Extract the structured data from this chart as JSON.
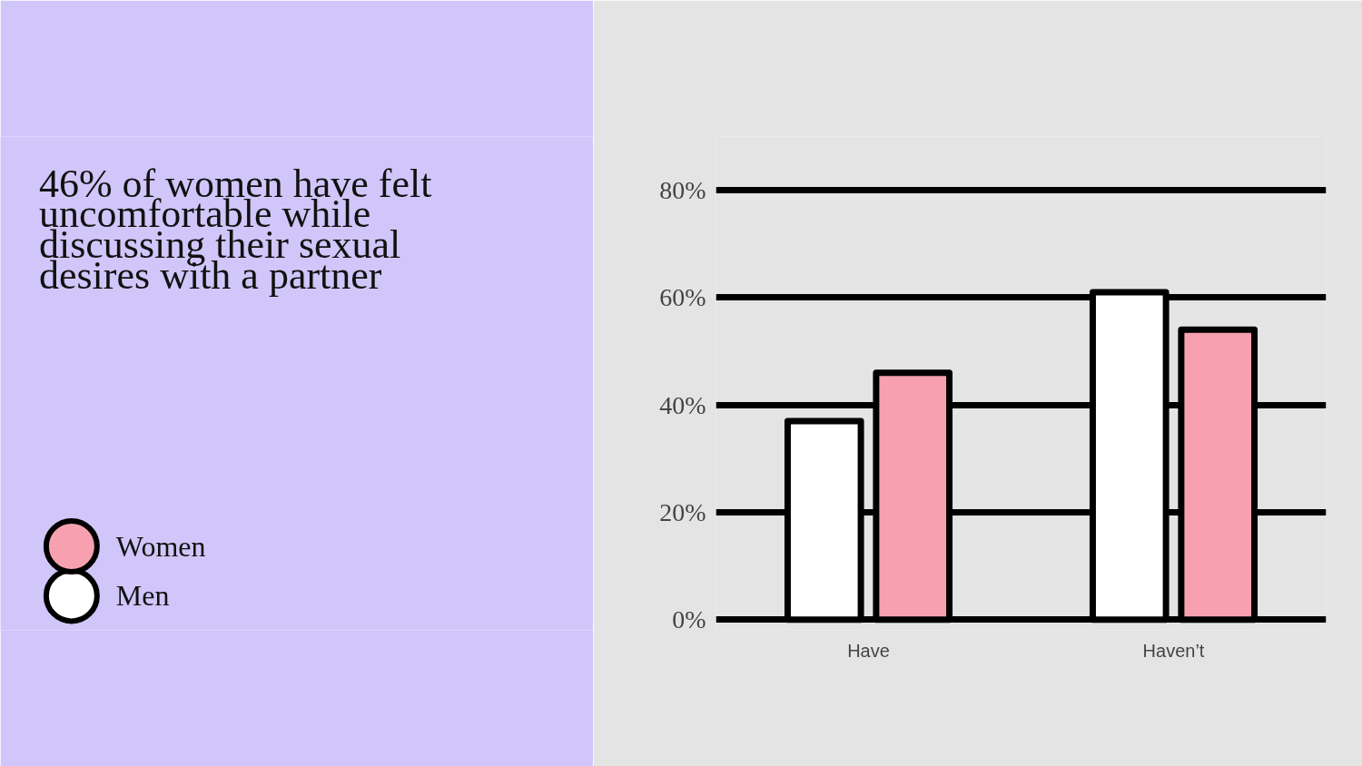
{
  "chart_data": {
    "type": "bar",
    "title": "46% of women have felt uncomfortable while discussing their sexual desires with a partner",
    "categories": [
      "Have",
      "Haven’t"
    ],
    "series": [
      {
        "name": "Men",
        "color": "#ffffff",
        "values": [
          37,
          61
        ]
      },
      {
        "name": "Women",
        "color": "#f7a1b0",
        "values": [
          46,
          54
        ]
      }
    ],
    "ylim": [
      -2,
      90
    ],
    "yticks": [
      {
        "value": 0,
        "label": "0%"
      },
      {
        "value": 20,
        "label": "20%"
      },
      {
        "value": 40,
        "label": "40%"
      },
      {
        "value": 60,
        "label": "60%"
      },
      {
        "value": 80,
        "label": "80%"
      }
    ],
    "grid": "y",
    "legend": "bottom left"
  }
}
